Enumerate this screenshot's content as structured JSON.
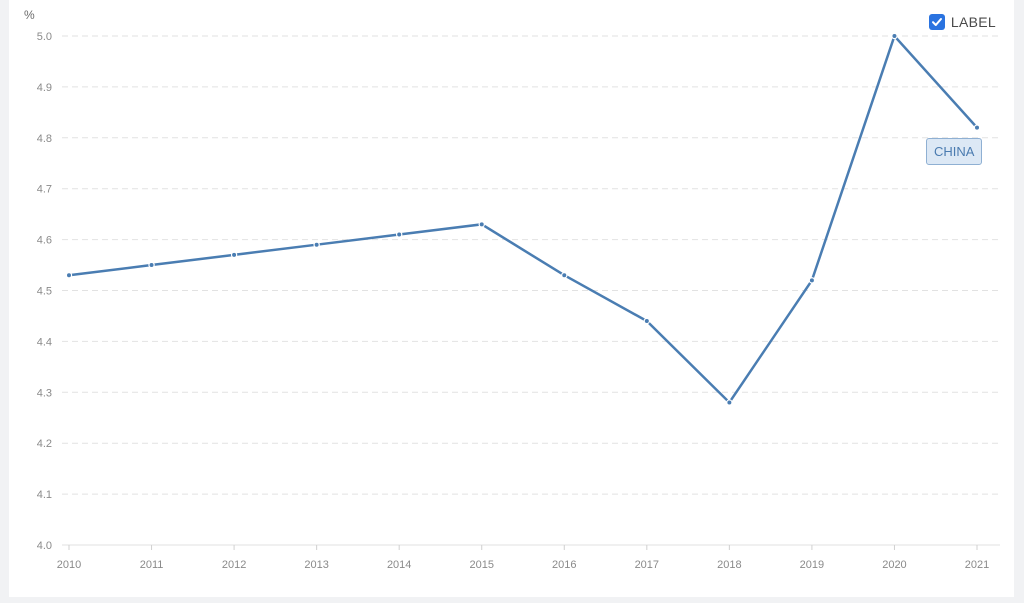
{
  "chart_data": {
    "type": "line",
    "x": [
      "2010",
      "2011",
      "2012",
      "2013",
      "2014",
      "2015",
      "2016",
      "2017",
      "2018",
      "2019",
      "2020",
      "2021"
    ],
    "series": [
      {
        "name": "CHINA",
        "values": [
          4.53,
          4.55,
          4.57,
          4.59,
          4.61,
          4.63,
          4.53,
          4.44,
          4.28,
          4.52,
          5.0,
          4.82
        ],
        "color": "#4a7db2"
      }
    ],
    "ylabel": "%",
    "ylim": [
      4.0,
      5.0
    ],
    "yticks": [
      "4.0",
      "4.1",
      "4.2",
      "4.3",
      "4.4",
      "4.5",
      "4.6",
      "4.7",
      "4.8",
      "4.9",
      "5.0"
    ],
    "grid": true,
    "legend": {
      "label": "LABEL",
      "checked": true,
      "placement": "top-right"
    }
  }
}
